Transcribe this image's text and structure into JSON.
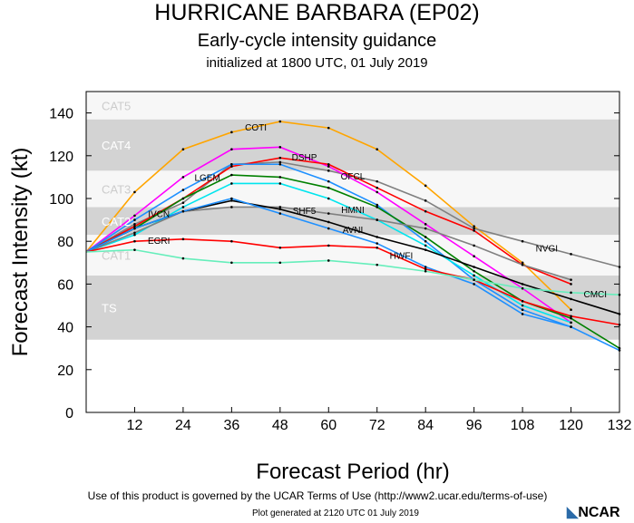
{
  "title": "HURRICANE BARBARA (EP02)",
  "subtitle": "Early-cycle intensity guidance",
  "initialized": "initialized at 1800 UTC, 01 July 2019",
  "footer": {
    "terms": "Use of this product is governed by the UCAR Terms of Use (http://www2.ucar.edu/terms-of-use)",
    "generated": "Plot generated at 2120 UTC   01 July 2019",
    "logo": "NCAR"
  },
  "chart_data": {
    "type": "line",
    "xlabel": "Forecast Period (hr)",
    "ylabel": "Forecast Intensity (kt)",
    "xlim": [
      0,
      132
    ],
    "ylim": [
      0,
      150
    ],
    "xticks": [
      12,
      24,
      36,
      48,
      60,
      72,
      84,
      96,
      108,
      120,
      132
    ],
    "yticks": [
      0,
      20,
      40,
      60,
      80,
      100,
      120,
      140
    ],
    "grid": false,
    "bands": [
      {
        "name": "TS",
        "min": 34,
        "max": 64,
        "color": "#d3d3d3"
      },
      {
        "name": "CAT1",
        "min": 64,
        "max": 83,
        "color": "#f7f7f7"
      },
      {
        "name": "CAT2",
        "min": 83,
        "max": 96,
        "color": "#d3d3d3"
      },
      {
        "name": "CAT3",
        "min": 96,
        "max": 113,
        "color": "#f7f7f7"
      },
      {
        "name": "CAT4",
        "min": 113,
        "max": 137,
        "color": "#d3d3d3"
      },
      {
        "name": "CAT5",
        "min": 137,
        "max": 150,
        "color": "#f7f7f7"
      }
    ],
    "x": [
      0,
      12,
      24,
      36,
      48,
      60,
      72,
      84,
      96,
      108,
      120,
      132
    ],
    "series": [
      {
        "name": "COTI",
        "color": "#ffa500",
        "values": [
          75,
          103,
          123,
          131,
          136,
          133,
          123,
          106,
          87,
          70,
          48,
          null
        ]
      },
      {
        "name": "NVGI",
        "color": "#808080",
        "values": [
          75,
          88,
          98,
          116,
          117,
          113,
          108,
          99,
          86,
          80,
          74,
          68
        ]
      },
      {
        "name": "DSHP",
        "color": "#ff00ff",
        "values": [
          75,
          92,
          110,
          123,
          124,
          115,
          103,
          88,
          73,
          58,
          42,
          null
        ]
      },
      {
        "name": "OFCL",
        "color": "#ff0000",
        "values": [
          75,
          87,
          100,
          115,
          119,
          116,
          105,
          94,
          85,
          69,
          60,
          null
        ]
      },
      {
        "name": "LGEM",
        "color": "#1e90ff",
        "values": [
          75,
          90,
          104,
          116,
          116,
          108,
          97,
          80,
          62,
          48,
          40,
          null
        ]
      },
      {
        "name": "IVCN",
        "color": "#008000",
        "values": [
          75,
          86,
          100,
          111,
          110,
          105,
          96,
          82,
          66,
          52,
          44,
          30
        ]
      },
      {
        "name": "HMNI",
        "color": "#00e5ee",
        "values": [
          75,
          83,
          96,
          107,
          107,
          100,
          90,
          78,
          64,
          50,
          42,
          null
        ]
      },
      {
        "name": "SHF5",
        "color": "#808080",
        "values": [
          75,
          84,
          94,
          96,
          96,
          93,
          90,
          86,
          78,
          69,
          62,
          null
        ]
      },
      {
        "name": "AVNI",
        "color": "#000000",
        "values": [
          75,
          86,
          94,
          99,
          95,
          89,
          82,
          76,
          68,
          60,
          53,
          46
        ]
      },
      {
        "name": "HWFI",
        "color": "#1e90ff",
        "values": [
          75,
          86,
          94,
          100,
          93,
          86,
          79,
          68,
          60,
          46,
          40,
          29
        ]
      },
      {
        "name": "EGRI",
        "color": "#ff0000",
        "values": [
          75,
          80,
          81,
          80,
          77,
          78,
          77,
          67,
          62,
          52,
          45,
          41
        ]
      },
      {
        "name": "CMCI",
        "color": "#66eebb",
        "values": [
          75,
          76,
          72,
          70,
          70,
          71,
          69,
          66,
          62,
          58,
          56,
          55
        ]
      }
    ]
  }
}
